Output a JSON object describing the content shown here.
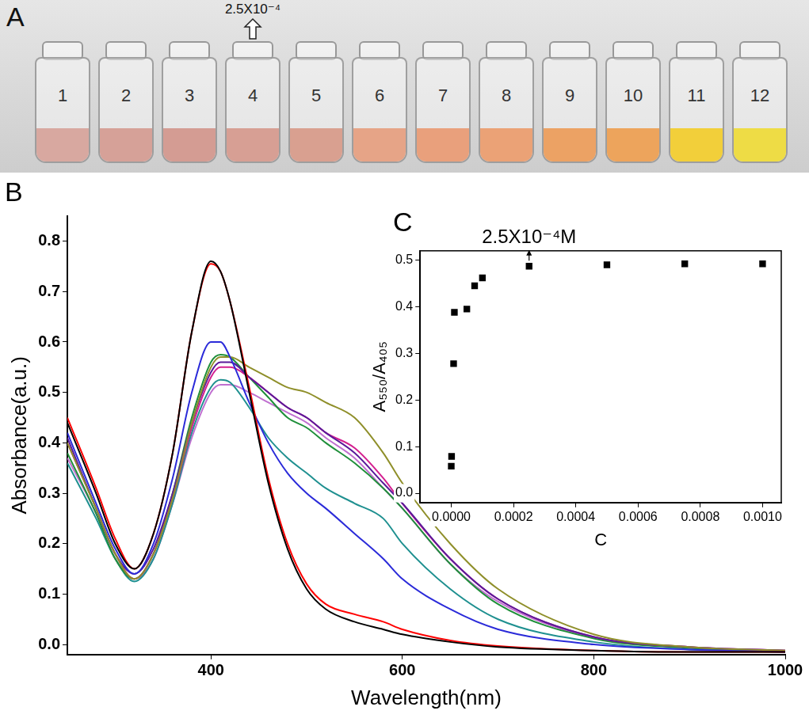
{
  "panel_a": {
    "label": "A",
    "vials": [
      {
        "label": "1",
        "color": "#d8a8a0"
      },
      {
        "label": "2",
        "color": "#d6a198"
      },
      {
        "label": "3",
        "color": "#d49c93"
      },
      {
        "label": "4",
        "color": "#d79f94"
      },
      {
        "label": "5",
        "color": "#d9a090"
      },
      {
        "label": "6",
        "color": "#e6a487"
      },
      {
        "label": "7",
        "color": "#e9a07c"
      },
      {
        "label": "8",
        "color": "#eba276"
      },
      {
        "label": "9",
        "color": "#eca264"
      },
      {
        "label": "10",
        "color": "#eda45c"
      },
      {
        "label": "11",
        "color": "#f2cf3a"
      },
      {
        "label": "12",
        "color": "#eedc45"
      }
    ],
    "annotation": {
      "text": "2.5X10⁻⁴",
      "vial": "4"
    }
  },
  "chart_data": [
    {
      "type": "line",
      "title": "B",
      "x_label": "Wavelength(nm)",
      "y_label": "Absorbance(a.u.)",
      "x": [
        250,
        280,
        300,
        320,
        340,
        360,
        380,
        400,
        410,
        420,
        440,
        460,
        480,
        500,
        520,
        550,
        580,
        600,
        650,
        700,
        800,
        900,
        1000
      ],
      "series": [
        {
          "color": "#000000",
          "values": [
            0.44,
            0.3,
            0.2,
            0.15,
            0.22,
            0.38,
            0.62,
            0.76,
            0.74,
            0.68,
            0.5,
            0.32,
            0.19,
            0.11,
            0.07,
            0.045,
            0.03,
            0.02,
            0.005,
            -0.005,
            -0.012,
            -0.015,
            -0.015
          ]
        },
        {
          "color": "#ff0000",
          "values": [
            0.45,
            0.31,
            0.21,
            0.15,
            0.22,
            0.38,
            0.62,
            0.755,
            0.74,
            0.68,
            0.51,
            0.33,
            0.2,
            0.12,
            0.08,
            0.06,
            0.045,
            0.03,
            0.008,
            -0.003,
            -0.012,
            -0.015,
            -0.015
          ]
        },
        {
          "color": "#2b2bd9",
          "values": [
            0.42,
            0.28,
            0.19,
            0.14,
            0.2,
            0.33,
            0.5,
            0.6,
            0.6,
            0.57,
            0.48,
            0.4,
            0.34,
            0.3,
            0.27,
            0.22,
            0.17,
            0.13,
            0.07,
            0.03,
            0.0,
            -0.01,
            -0.015
          ]
        },
        {
          "color": "#8f8f2a",
          "values": [
            0.4,
            0.27,
            0.18,
            0.13,
            0.18,
            0.29,
            0.44,
            0.55,
            0.57,
            0.57,
            0.55,
            0.53,
            0.51,
            0.5,
            0.48,
            0.45,
            0.38,
            0.32,
            0.2,
            0.11,
            0.02,
            -0.005,
            -0.012
          ]
        },
        {
          "color": "#5a1a9a",
          "values": [
            0.41,
            0.27,
            0.18,
            0.14,
            0.19,
            0.3,
            0.44,
            0.54,
            0.56,
            0.56,
            0.53,
            0.5,
            0.47,
            0.45,
            0.42,
            0.38,
            0.32,
            0.28,
            0.17,
            0.09,
            0.015,
            -0.005,
            -0.012
          ]
        },
        {
          "color": "#d41f8f",
          "values": [
            0.4,
            0.27,
            0.18,
            0.13,
            0.18,
            0.29,
            0.43,
            0.53,
            0.55,
            0.55,
            0.53,
            0.5,
            0.47,
            0.45,
            0.42,
            0.39,
            0.33,
            0.28,
            0.17,
            0.09,
            0.015,
            -0.005,
            -0.012
          ]
        },
        {
          "color": "#1f8f3a",
          "values": [
            0.38,
            0.26,
            0.17,
            0.13,
            0.18,
            0.3,
            0.45,
            0.56,
            0.575,
            0.57,
            0.53,
            0.49,
            0.45,
            0.43,
            0.4,
            0.36,
            0.31,
            0.27,
            0.16,
            0.08,
            0.012,
            -0.007,
            -0.013
          ]
        },
        {
          "color": "#1f9090",
          "values": [
            0.36,
            0.25,
            0.17,
            0.125,
            0.17,
            0.28,
            0.42,
            0.51,
            0.525,
            0.52,
            0.47,
            0.41,
            0.37,
            0.34,
            0.31,
            0.28,
            0.25,
            0.2,
            0.11,
            0.05,
            0.005,
            -0.01,
            -0.014
          ]
        },
        {
          "color": "#c070d0",
          "values": [
            0.37,
            0.26,
            0.17,
            0.13,
            0.17,
            0.28,
            0.41,
            0.5,
            0.515,
            0.515,
            0.5,
            0.48,
            0.46,
            0.44,
            0.41,
            0.37,
            0.31,
            0.27,
            0.16,
            0.085,
            0.013,
            -0.006,
            -0.012
          ]
        }
      ],
      "xlim": [
        250,
        1000
      ],
      "xticks": [
        400,
        600,
        800,
        1000
      ],
      "ylim": [
        -0.02,
        0.85
      ],
      "yticks": [
        {
          "value": 0,
          "label": "0.0"
        },
        0.1,
        0.2,
        0.3,
        0.4,
        0.5,
        0.6,
        0.7,
        0.8
      ],
      "grid": false,
      "marker": "none"
    },
    {
      "type": "scatter",
      "title": "C",
      "x_label": "C",
      "y_label": "A₅₅₀/A₄₀₅",
      "x": [
        0,
        1e-06,
        7.5e-06,
        1e-05,
        5e-05,
        7.5e-05,
        0.0001,
        0.00025,
        0.0005,
        0.00075,
        0.001
      ],
      "series": [
        {
          "color": "#000000",
          "values": [
            0.058,
            0.079,
            0.278,
            0.388,
            0.395,
            0.445,
            0.462,
            0.487,
            0.49,
            0.492,
            0.492
          ]
        }
      ],
      "xlim": [
        -0.0001,
        0.00106
      ],
      "xticks": [
        {
          "value": 0,
          "label": "0.0000"
        },
        0.0002,
        0.0004,
        0.0006,
        0.0008,
        {
          "value": 0.001,
          "label": "0.0010"
        }
      ],
      "ylim": [
        -0.02,
        0.52
      ],
      "yticks": [
        {
          "value": 0,
          "label": "0.0"
        },
        0.1,
        0.2,
        0.3,
        0.4,
        0.5
      ],
      "grid": false,
      "marker": "square",
      "annotations": [
        {
          "text": "2.5X10⁻⁴M",
          "x": 0.00025,
          "y": 0.487
        }
      ]
    }
  ]
}
